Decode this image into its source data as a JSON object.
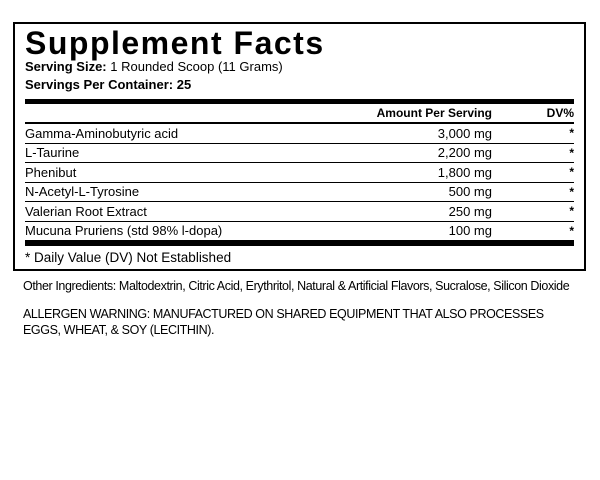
{
  "label": {
    "title": "Supplement Facts",
    "serving_size_label": "Serving Size:",
    "serving_size_value": "1 Rounded Scoop (11 Grams)",
    "servings_per_container": "Servings Per Container: 25",
    "columns": {
      "amount": "Amount Per Serving",
      "dv": "DV%"
    },
    "rows": [
      {
        "name": "Gamma-Aminobutyric acid",
        "amount": "3,000 mg",
        "dv": "*"
      },
      {
        "name": "L-Taurine",
        "amount": "2,200 mg",
        "dv": "*"
      },
      {
        "name": "Phenibut",
        "amount": "1,800 mg",
        "dv": "*"
      },
      {
        "name": "N-Acetyl-L-Tyrosine",
        "amount": "500 mg",
        "dv": "*"
      },
      {
        "name": "Valerian Root Extract",
        "amount": "250 mg",
        "dv": "*"
      },
      {
        "name": "Mucuna Pruriens (std 98% l-dopa)",
        "amount": "100 mg",
        "dv": "*"
      }
    ],
    "footnote": "* Daily Value (DV) Not Established"
  },
  "below": {
    "other_ingredients": "Other Ingredients: Maltodextrin, Citric Acid, Erythritol, Natural & Artificial Flavors, Sucralose, Silicon Dioxide",
    "allergen_warning": "ALLERGEN WARNING: MANUFACTURED ON SHARED EQUIPMENT THAT ALSO PROCESSES EGGS, WHEAT, & SOY (LECITHIN)."
  },
  "colors": {
    "text": "#000000",
    "background": "#ffffff",
    "border": "#000000"
  }
}
